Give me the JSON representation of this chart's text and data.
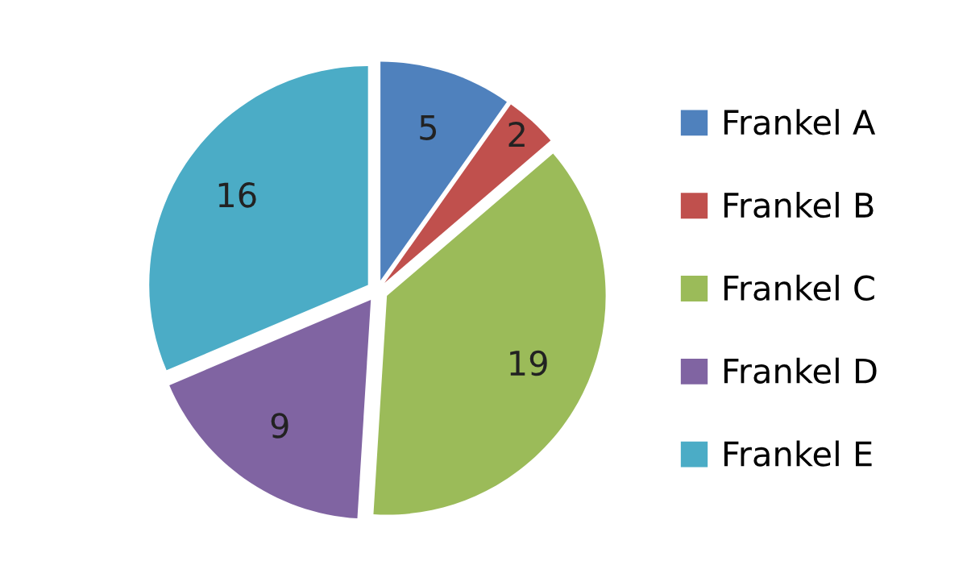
{
  "chart_data": {
    "type": "pie",
    "categories": [
      "Frankel A",
      "Frankel B",
      "Frankel C",
      "Frankel D",
      "Frankel E"
    ],
    "values": [
      5,
      2,
      19,
      9,
      16
    ],
    "colors": [
      "#4f81bd",
      "#c0504d",
      "#9bbb59",
      "#8064a2",
      "#4bacc6"
    ],
    "data_labels": true,
    "legend": "right"
  }
}
